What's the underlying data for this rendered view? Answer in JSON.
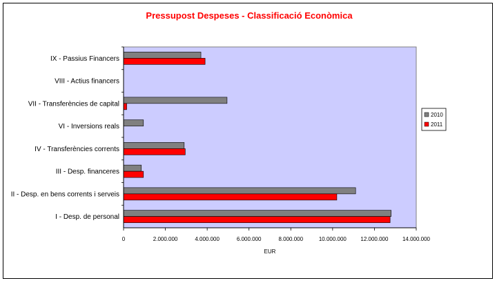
{
  "chart_data": {
    "type": "bar",
    "orientation": "horizontal",
    "title": "Pressupost Despeses - Classificació Econòmica",
    "xlabel": "EUR",
    "ylabel": "",
    "categories": [
      "I - Desp. de personal",
      "II - Desp. en bens corrents i serveis",
      "III - Desp. financeres",
      "IV - Transferències corrents",
      "VI - Inversions reals",
      "VII - Transferències de capital",
      "VIII - Actius financers",
      "IX - Passius Financers"
    ],
    "series": [
      {
        "name": "2010",
        "color": "#808080",
        "values": [
          12800000,
          11100000,
          850000,
          2900000,
          950000,
          4950000,
          0,
          3700000
        ]
      },
      {
        "name": "2011",
        "color": "#ff0000",
        "values": [
          12750000,
          10200000,
          950000,
          2950000,
          0,
          150000,
          0,
          3900000
        ]
      }
    ],
    "xlim": [
      0,
      14000000
    ],
    "xticks": [
      "0",
      "2.000.000",
      "4.000.000",
      "6.000.000",
      "8.000.000",
      "10.000.000",
      "12.000.000",
      "14.000.000"
    ],
    "grid": false,
    "plot_background": "#ccccff",
    "title_color": "#ff0000",
    "legend_position": "right"
  }
}
